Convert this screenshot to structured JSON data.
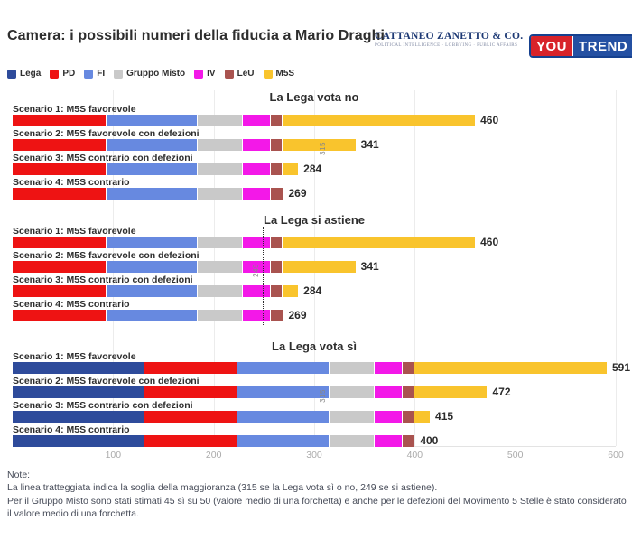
{
  "header": {
    "title": "Camera: i possibili numeri della fiducia a Mario Draghi",
    "cattaneo_zanetto": {
      "name": "CATTANEO ZANETTO & CO.",
      "tagline": "POLITICAL INTELLIGENCE · LOBBYING · PUBLIC AFFAIRS"
    },
    "youtrend": {
      "part1": "YOU",
      "part2": "TREND"
    }
  },
  "legend": [
    {
      "label": "Lega",
      "color": "#2e4b9b"
    },
    {
      "label": "PD",
      "color": "#ee1313"
    },
    {
      "label": "FI",
      "color": "#6789e0"
    },
    {
      "label": "Gruppo Misto",
      "color": "#c9c9c9"
    },
    {
      "label": "IV",
      "color": "#f318e8"
    },
    {
      "label": "LeU",
      "color": "#a9534f"
    },
    {
      "label": "M5S",
      "color": "#f9c42d"
    }
  ],
  "chart_data": {
    "type": "bar",
    "orientation": "horizontal",
    "stacked": true,
    "xlim": [
      0,
      600
    ],
    "xticks": [
      100,
      200,
      300,
      400,
      500,
      600
    ],
    "grid": true,
    "parties": [
      "Lega",
      "PD",
      "FI",
      "Gruppo Misto",
      "IV",
      "LeU",
      "M5S"
    ],
    "party_colors": [
      "#2e4b9b",
      "#ee1313",
      "#6789e0",
      "#c9c9c9",
      "#f318e8",
      "#a9534f",
      "#f9c42d"
    ],
    "groups": [
      {
        "title": "La Lega vota no",
        "threshold": 315,
        "scenarios": [
          {
            "label": "Scenario 1: M5S favorevole",
            "total": 460,
            "values": [
              0,
              93,
              91,
              45,
              28,
              12,
              191
            ]
          },
          {
            "label": "Scenario 2: M5S favorevole con defezioni",
            "total": 341,
            "values": [
              0,
              93,
              91,
              45,
              28,
              12,
              72
            ]
          },
          {
            "label": "Scenario 3: M5S contrario con defezioni",
            "total": 284,
            "values": [
              0,
              93,
              91,
              45,
              28,
              12,
              15
            ]
          },
          {
            "label": "Scenario 4: M5S contrario",
            "total": 269,
            "values": [
              0,
              93,
              91,
              45,
              28,
              12,
              0
            ]
          }
        ]
      },
      {
        "title": "La Lega si astiene",
        "threshold": 249,
        "scenarios": [
          {
            "label": "Scenario 1: M5S favorevole",
            "total": 460,
            "values": [
              0,
              93,
              91,
              45,
              28,
              12,
              191
            ]
          },
          {
            "label": "Scenario 2: M5S favorevole con defezioni",
            "total": 341,
            "values": [
              0,
              93,
              91,
              45,
              28,
              12,
              72
            ]
          },
          {
            "label": "Scenario 3: M5S contrario con defezioni",
            "total": 284,
            "values": [
              0,
              93,
              91,
              45,
              28,
              12,
              15
            ]
          },
          {
            "label": "Scenario 4: M5S contrario",
            "total": 269,
            "values": [
              0,
              93,
              91,
              45,
              28,
              12,
              0
            ]
          }
        ]
      },
      {
        "title": "La Lega vota sì",
        "threshold": 315,
        "scenarios": [
          {
            "label": "Scenario 1: M5S favorevole",
            "total": 591,
            "values": [
              131,
              93,
              91,
              45,
              28,
              12,
              191
            ]
          },
          {
            "label": "Scenario 2: M5S favorevole con defezioni",
            "total": 472,
            "values": [
              131,
              93,
              91,
              45,
              28,
              12,
              72
            ]
          },
          {
            "label": "Scenario 3: M5S contrario con defezioni",
            "total": 415,
            "values": [
              131,
              93,
              91,
              45,
              28,
              12,
              15
            ]
          },
          {
            "label": "Scenario 4: M5S contrario",
            "total": 400,
            "values": [
              131,
              93,
              91,
              45,
              28,
              12,
              0
            ]
          }
        ]
      }
    ]
  },
  "note": {
    "heading": "Note:",
    "line1": "La linea tratteggiata indica la soglia della maggioranza (315 se la Lega vota sì o no, 249 se si astiene).",
    "line2": "Per il Gruppo Misto sono stati stimati 45 sì su 50 (valore medio di una forchetta) e anche per le defezioni del Movimento 5 Stelle è stato considerato il valore medio di una forchetta."
  }
}
